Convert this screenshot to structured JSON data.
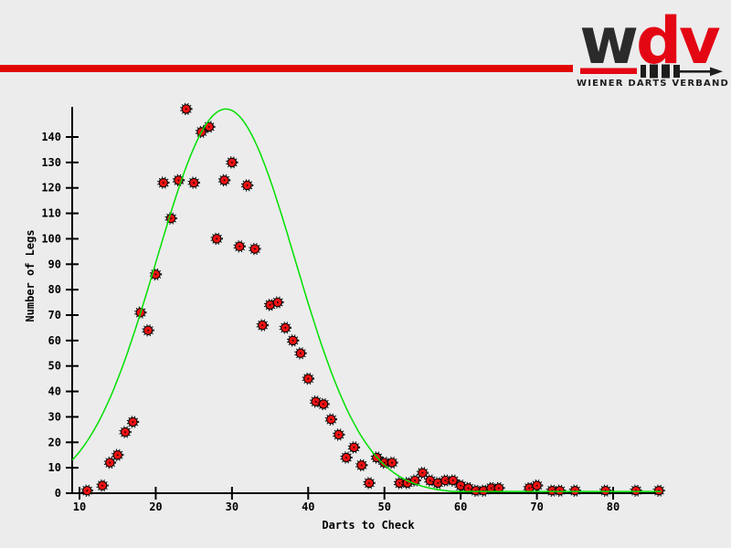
{
  "page": {
    "background": "#ececec"
  },
  "header": {
    "bar_color": "#e10600"
  },
  "logo": {
    "dark_letters": "w",
    "red_letters": "dv",
    "tagline": "WIENER DARTS VERBAND",
    "dark_color": "#2b2b2b",
    "red_color": "#e30613"
  },
  "chart_data": {
    "type": "scatter",
    "xlabel": "Darts to Check",
    "ylabel": "Number of Legs",
    "x_ticks": [
      10,
      20,
      30,
      40,
      50,
      60,
      70,
      80
    ],
    "y_ticks": [
      0,
      10,
      20,
      30,
      40,
      50,
      60,
      70,
      80,
      90,
      100,
      110,
      120,
      130,
      140
    ],
    "xlim": [
      9,
      86.6
    ],
    "ylim": [
      0,
      155
    ],
    "grid": false,
    "legend": "none",
    "axis_color": "#000000",
    "point_color": "#ee1111",
    "point_border_color": "#000000",
    "points": [
      [
        11,
        1
      ],
      [
        13,
        3
      ],
      [
        14,
        12
      ],
      [
        15,
        15
      ],
      [
        16,
        24
      ],
      [
        17,
        28
      ],
      [
        18,
        71
      ],
      [
        19,
        64
      ],
      [
        20,
        86
      ],
      [
        21,
        122
      ],
      [
        22,
        108
      ],
      [
        23,
        123
      ],
      [
        24,
        151
      ],
      [
        25,
        122
      ],
      [
        26,
        142
      ],
      [
        27,
        144
      ],
      [
        28,
        100
      ],
      [
        29,
        123
      ],
      [
        30,
        130
      ],
      [
        31,
        97
      ],
      [
        32,
        121
      ],
      [
        33,
        96
      ],
      [
        34,
        66
      ],
      [
        35,
        74
      ],
      [
        36,
        75
      ],
      [
        37,
        65
      ],
      [
        38,
        60
      ],
      [
        39,
        55
      ],
      [
        40,
        45
      ],
      [
        41,
        36
      ],
      [
        42,
        35
      ],
      [
        43,
        29
      ],
      [
        44,
        23
      ],
      [
        45,
        14
      ],
      [
        46,
        18
      ],
      [
        47,
        11
      ],
      [
        48,
        4
      ],
      [
        49,
        14
      ],
      [
        50,
        12
      ],
      [
        51,
        12
      ],
      [
        52,
        4
      ],
      [
        53,
        4
      ],
      [
        54,
        5
      ],
      [
        55,
        8
      ],
      [
        56,
        5
      ],
      [
        57,
        4
      ],
      [
        58,
        5
      ],
      [
        59,
        5
      ],
      [
        60,
        3
      ],
      [
        61,
        2
      ],
      [
        62,
        1
      ],
      [
        63,
        1
      ],
      [
        64,
        2
      ],
      [
        65,
        2
      ],
      [
        69,
        2
      ],
      [
        70,
        3
      ],
      [
        72,
        1
      ],
      [
        73,
        1
      ],
      [
        75,
        1
      ],
      [
        79,
        1
      ],
      [
        83,
        1
      ],
      [
        86,
        1
      ]
    ],
    "curve": {
      "shape": "gaussian",
      "amplitude": 151,
      "mean": 29.2,
      "sigma": 9.1,
      "floor": 0.7,
      "color": "#00e000"
    }
  }
}
